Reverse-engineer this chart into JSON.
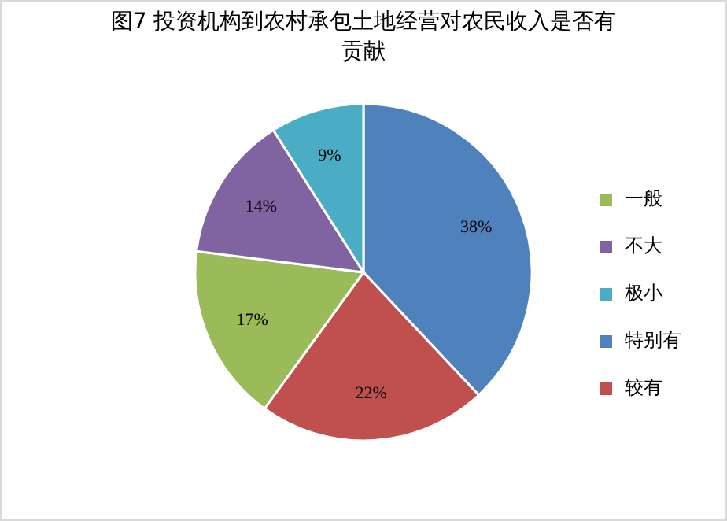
{
  "chart_data": {
    "type": "pie",
    "title": "图7  投资机构到农村承包土地经营对农民收入是否有贡献",
    "categories": [
      "特别有",
      "较有",
      "一般",
      "不大",
      "极小"
    ],
    "values": [
      38,
      22,
      17,
      14,
      9
    ],
    "value_labels": [
      "38%",
      "22%",
      "17%",
      "14%",
      "9%"
    ],
    "colors": [
      "#4f81bd",
      "#c0504d",
      "#9bbb59",
      "#8064a2",
      "#4bacc6"
    ],
    "legend": "right"
  }
}
